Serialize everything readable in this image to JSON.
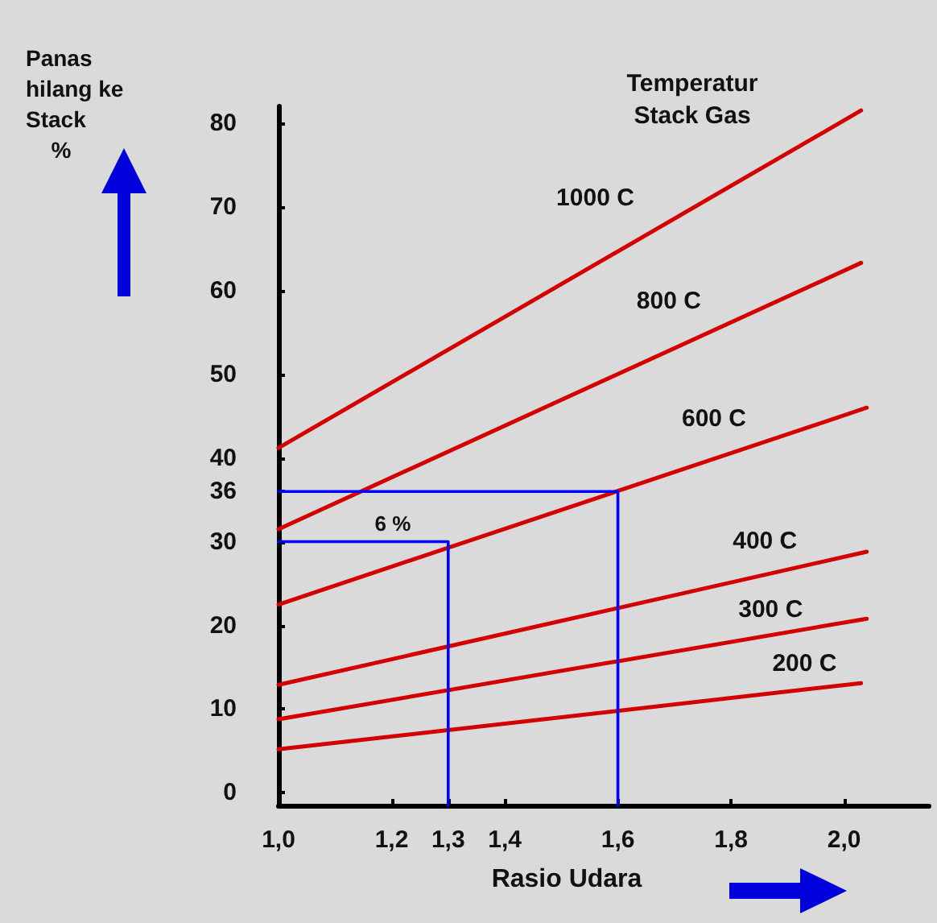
{
  "chart_data": {
    "type": "line",
    "ylabel": "Panas hilang ke Stack %",
    "xlabel": "Rasio Udara",
    "legend_title": "Temperatur Stack Gas",
    "xlim": [
      1.0,
      2.15
    ],
    "ylim": [
      -1.5,
      82
    ],
    "xticks": [
      {
        "value": 1.0,
        "label": "1,0"
      },
      {
        "value": 1.2,
        "label": "1,2"
      },
      {
        "value": 1.3,
        "label": "1,3"
      },
      {
        "value": 1.4,
        "label": "1,4"
      },
      {
        "value": 1.6,
        "label": "1,6"
      },
      {
        "value": 1.8,
        "label": "1,8"
      },
      {
        "value": 2.0,
        "label": "2,0"
      }
    ],
    "yticks": [
      0,
      10,
      20,
      30,
      36,
      40,
      50,
      60,
      70,
      80
    ],
    "grid": false,
    "series": [
      {
        "name": "1000 C",
        "color": "#d40000",
        "x": [
          1.0,
          2.03
        ],
        "values": [
          41.2,
          81.5
        ]
      },
      {
        "name": "800 C",
        "color": "#d40000",
        "x": [
          1.0,
          2.03
        ],
        "values": [
          31.5,
          63.3
        ]
      },
      {
        "name": "600 C",
        "color": "#d40000",
        "x": [
          1.0,
          2.04
        ],
        "values": [
          22.5,
          46
        ]
      },
      {
        "name": "400 C",
        "color": "#d40000",
        "x": [
          1.0,
          2.04
        ],
        "values": [
          12.9,
          28.8
        ]
      },
      {
        "name": "300 C",
        "color": "#d40000",
        "x": [
          1.0,
          2.04
        ],
        "values": [
          8.8,
          20.8
        ]
      },
      {
        "name": "200 C",
        "color": "#d40000",
        "x": [
          1.0,
          2.03
        ],
        "values": [
          5.2,
          13.1
        ]
      },
      {
        "color": "#0000ff",
        "x": [
          1.0,
          1.6,
          1.6
        ],
        "values": [
          36,
          36,
          -1.5
        ]
      },
      {
        "color": "#0000ff",
        "x": [
          1.0,
          1.3,
          1.3
        ],
        "values": [
          30,
          30,
          -1.5
        ]
      }
    ],
    "annotations": [
      "6 %"
    ]
  }
}
